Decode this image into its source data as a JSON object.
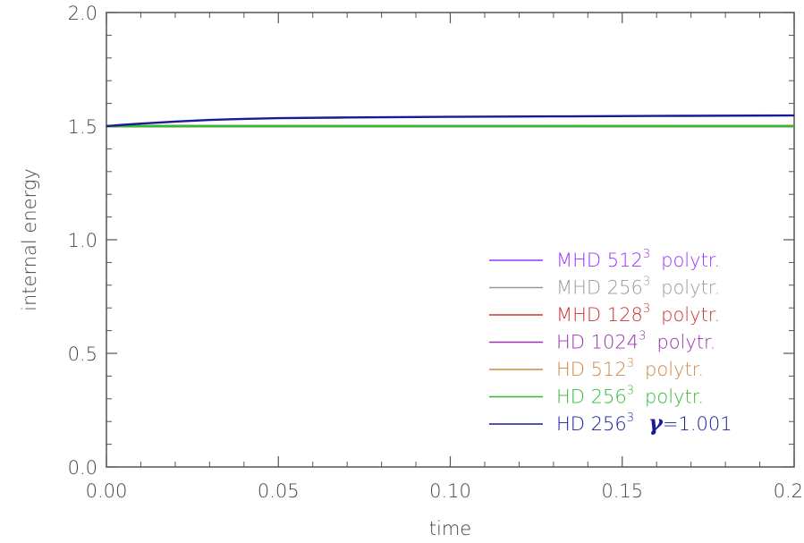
{
  "chart_data": {
    "type": "line",
    "title": "",
    "xlabel": "time",
    "ylabel": "internal energy",
    "xlim": [
      0.0,
      0.2
    ],
    "ylim": [
      0.0,
      2.0
    ],
    "xticks": [
      "0.00",
      "0.05",
      "0.10",
      "0.15",
      "0.20"
    ],
    "yticks": [
      "0.0",
      "0.5",
      "1.0",
      "1.5",
      "2.0"
    ],
    "grid": false,
    "legend_position": "bottom-right",
    "series": [
      {
        "name": "MHD 512³ polytr.",
        "label_main": "MHD 512",
        "label_sup": "3",
        "label_tail": "polytr.",
        "color": "#9933ff",
        "x": [
          0.0,
          0.2
        ],
        "y": [
          1.5,
          1.5
        ]
      },
      {
        "name": "MHD 256³ polytr.",
        "label_main": "MHD 256",
        "label_sup": "3",
        "label_tail": "polytr.",
        "color": "#999999",
        "x": [
          0.0,
          0.2
        ],
        "y": [
          1.5,
          1.5
        ]
      },
      {
        "name": "MHD 128³ polytr.",
        "label_main": "MHD 128",
        "label_sup": "3",
        "label_tail": "polytr.",
        "color": "#cc3333",
        "x": [
          0.0,
          0.2
        ],
        "y": [
          1.5,
          1.5
        ]
      },
      {
        "name": "HD 1024³ polytr.",
        "label_main": "HD 1024",
        "label_sup": "3",
        "label_tail": "polytr.",
        "color": "#9933aa",
        "x": [
          0.0,
          0.2
        ],
        "y": [
          1.5,
          1.5
        ]
      },
      {
        "name": "HD 512³ polytr.",
        "label_main": "HD 512",
        "label_sup": "3",
        "label_tail": "polytr.",
        "color": "#cc8844",
        "x": [
          0.0,
          0.2
        ],
        "y": [
          1.5,
          1.5
        ]
      },
      {
        "name": "HD 256³ polytr.",
        "label_main": "HD 256",
        "label_sup": "3",
        "label_tail": "polytr.",
        "color": "#33bb33",
        "x": [
          0.0,
          0.2
        ],
        "y": [
          1.5,
          1.5
        ]
      },
      {
        "name": "HD 256³ γ=1.001",
        "label_main": "HD 256",
        "label_sup": "3",
        "label_gamma": "γ",
        "label_tail": "=1.001",
        "color": "#1a1a99",
        "x": [
          0.0,
          0.005,
          0.01,
          0.02,
          0.03,
          0.04,
          0.05,
          0.07,
          0.1,
          0.13,
          0.16,
          0.2
        ],
        "y": [
          1.5,
          1.506,
          1.511,
          1.52,
          1.527,
          1.532,
          1.535,
          1.538,
          1.541,
          1.543,
          1.545,
          1.547
        ]
      }
    ]
  }
}
